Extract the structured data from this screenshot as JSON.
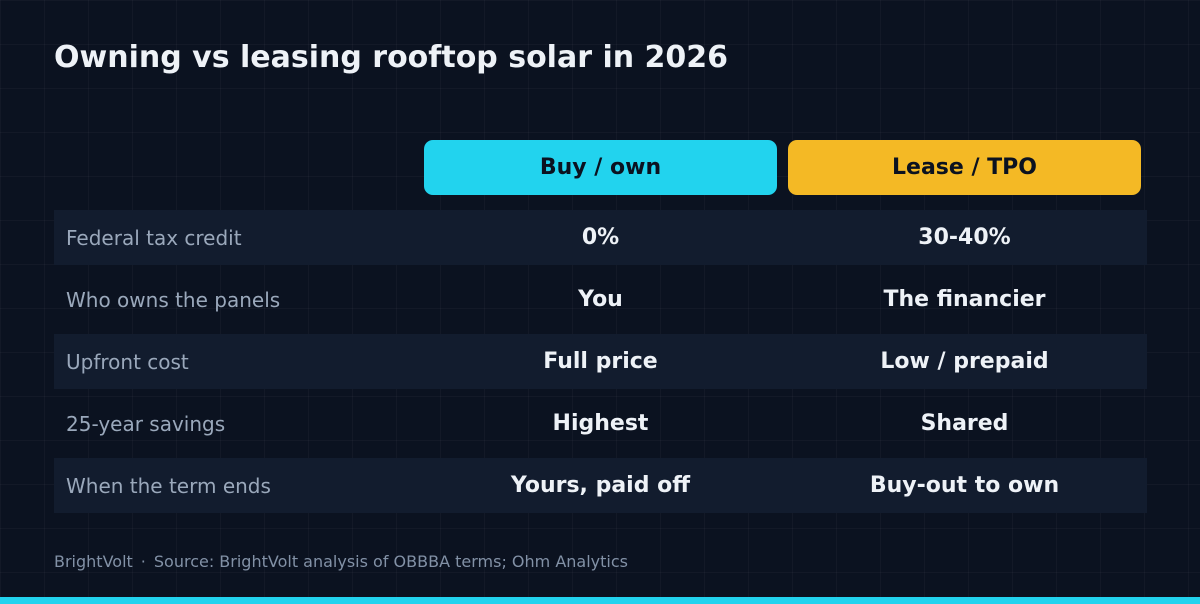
{
  "title": "Owning vs leasing rooftop solar in 2026",
  "columns": {
    "buy": "Buy / own",
    "lease": "Lease / TPO"
  },
  "rows": [
    {
      "label": "Federal tax credit",
      "buy": "0%",
      "lease": "30-40%"
    },
    {
      "label": "Who owns the panels",
      "buy": "You",
      "lease": "The financier"
    },
    {
      "label": "Upfront cost",
      "buy": "Full price",
      "lease": "Low / prepaid"
    },
    {
      "label": "25-year savings",
      "buy": "Highest",
      "lease": "Shared"
    },
    {
      "label": "When the term ends",
      "buy": "Yours, paid off",
      "lease": "Buy-out to own"
    }
  ],
  "footer": {
    "brand": "BrightVolt",
    "separator": "·",
    "source": "Source: BrightVolt analysis of OBBBA terms; Ohm Analytics"
  },
  "colors": {
    "background": "#0b1220",
    "buy_accent": "#22d3ee",
    "lease_accent": "#f4b925",
    "row_shade": "#121c2e"
  }
}
